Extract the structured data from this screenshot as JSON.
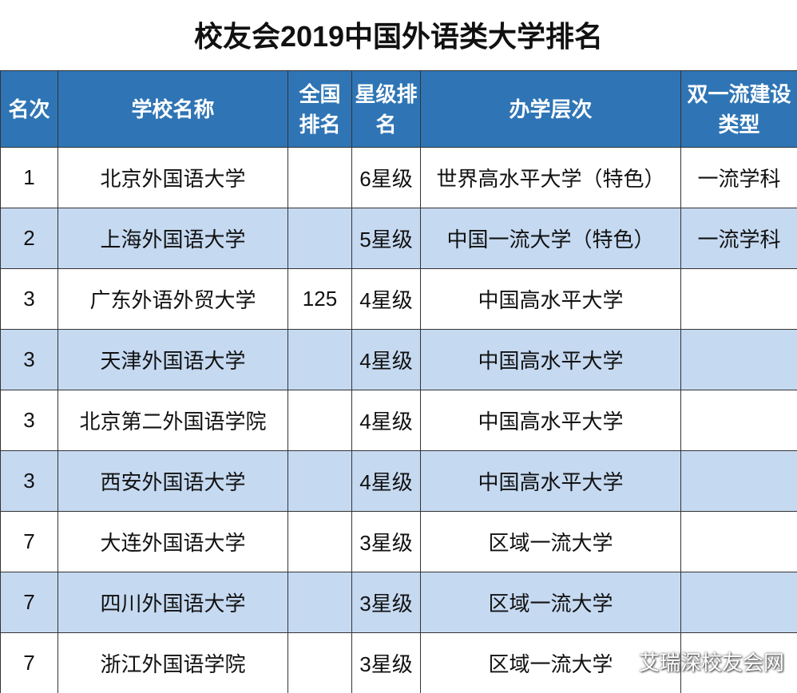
{
  "title": "校友会2019中国外语类大学排名",
  "table": {
    "header": [
      "名次",
      "学校名称",
      "全国排名",
      "星级排名",
      "办学层次",
      "双一流建设类型"
    ],
    "rows": [
      [
        "1",
        "北京外国语大学",
        null,
        "6星级",
        "世界高水平大学（特色）",
        "一流学科"
      ],
      [
        "2",
        "上海外国语大学",
        null,
        "5星级",
        "中国一流大学（特色）",
        "一流学科"
      ],
      [
        "3",
        "广东外语外贸大学",
        "125",
        "4星级",
        "中国高水平大学",
        null
      ],
      [
        "3",
        "天津外国语大学",
        null,
        "4星级",
        "中国高水平大学",
        null
      ],
      [
        "3",
        "北京第二外国语学院",
        null,
        "4星级",
        "中国高水平大学",
        null
      ],
      [
        "3",
        "西安外国语大学",
        null,
        "4星级",
        "中国高水平大学",
        null
      ],
      [
        "7",
        "大连外国语大学",
        null,
        "3星级",
        "区域一流大学",
        null
      ],
      [
        "7",
        "四川外国语大学",
        null,
        "3星级",
        "区域一流大学",
        null
      ],
      [
        "7",
        "浙江外国语学院",
        null,
        "3星级",
        "区域一流大学",
        null
      ]
    ]
  },
  "watermark": "艾瑞深校友会网"
}
